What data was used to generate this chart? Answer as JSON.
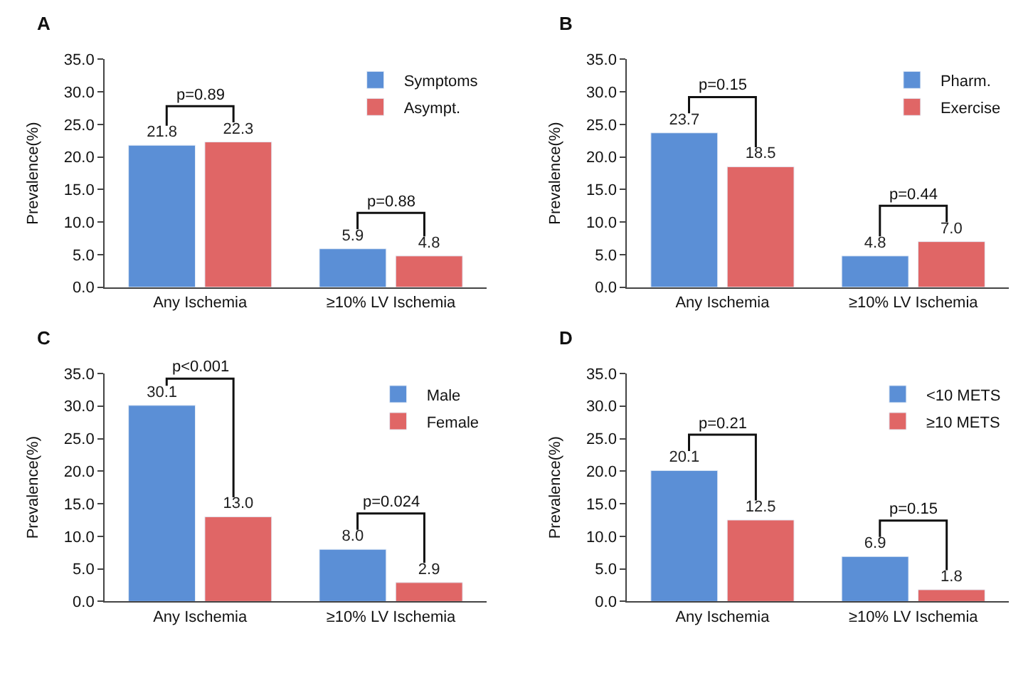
{
  "chart_data": [
    {
      "type": "bar",
      "title": "A",
      "ylabel": "Prevalence(%)",
      "categories": [
        "Any Ischemia",
        "≥10% LV Ischemia"
      ],
      "series": [
        {
          "name": "Symptoms",
          "color": "#5b8fd6",
          "values": [
            21.8,
            5.9
          ],
          "value_labels": [
            "21.8",
            "5.9"
          ]
        },
        {
          "name": "Asympt.",
          "color": "#e06666",
          "values": [
            22.3,
            4.8
          ],
          "value_labels": [
            "22.3",
            "4.8"
          ]
        }
      ],
      "ylim": [
        0,
        35
      ],
      "yticks": [
        {
          "value": 0,
          "label": "0.0"
        },
        {
          "value": 5,
          "label": "5.0"
        },
        {
          "value": 10,
          "label": "10.0"
        },
        {
          "value": 15,
          "label": "15.0"
        },
        {
          "value": 20,
          "label": "20.0"
        },
        {
          "value": 25,
          "label": "25.0"
        },
        {
          "value": 30,
          "label": "30.0"
        },
        {
          "value": 35,
          "label": "35.0"
        }
      ],
      "legend": "top right",
      "annotations": [
        "p=0.89",
        "p=0.88"
      ]
    },
    {
      "type": "bar",
      "title": "B",
      "ylabel": "Prevalence(%)",
      "categories": [
        "Any Ischemia",
        "≥10% LV Ischemia"
      ],
      "series": [
        {
          "name": "Pharm.",
          "color": "#5b8fd6",
          "values": [
            23.7,
            4.8
          ],
          "value_labels": [
            "23.7",
            "4.8"
          ]
        },
        {
          "name": "Exercise",
          "color": "#e06666",
          "values": [
            18.5,
            7.0
          ],
          "value_labels": [
            "18.5",
            "7.0"
          ]
        }
      ],
      "ylim": [
        0,
        35
      ],
      "yticks": [
        {
          "value": 0,
          "label": "0.0"
        },
        {
          "value": 5,
          "label": "5.0"
        },
        {
          "value": 10,
          "label": "10.0"
        },
        {
          "value": 15,
          "label": "15.0"
        },
        {
          "value": 20,
          "label": "20.0"
        },
        {
          "value": 25,
          "label": "25.0"
        },
        {
          "value": 30,
          "label": "30.0"
        },
        {
          "value": 35,
          "label": "35.0"
        }
      ],
      "legend": "top right",
      "annotations": [
        "p=0.15",
        "p=0.44"
      ]
    },
    {
      "type": "bar",
      "title": "C",
      "ylabel": "Prevalence(%)",
      "categories": [
        "Any Ischemia",
        "≥10% LV Ischemia"
      ],
      "series": [
        {
          "name": "Male",
          "color": "#5b8fd6",
          "values": [
            30.1,
            8.0
          ],
          "value_labels": [
            "30.1",
            "8.0"
          ]
        },
        {
          "name": "Female",
          "color": "#e06666",
          "values": [
            13.0,
            2.9
          ],
          "value_labels": [
            "13.0",
            "2.9"
          ]
        }
      ],
      "ylim": [
        0,
        35
      ],
      "yticks": [
        {
          "value": 0,
          "label": "0.0"
        },
        {
          "value": 5,
          "label": "5.0"
        },
        {
          "value": 10,
          "label": "10.0"
        },
        {
          "value": 15,
          "label": "15.0"
        },
        {
          "value": 20,
          "label": "20.0"
        },
        {
          "value": 25,
          "label": "25.0"
        },
        {
          "value": 30,
          "label": "30.0"
        },
        {
          "value": 35,
          "label": "35.0"
        }
      ],
      "legend": "top right",
      "annotations": [
        "p<0.001",
        "p=0.024"
      ]
    },
    {
      "type": "bar",
      "title": "D",
      "ylabel": "Prevalence(%)",
      "categories": [
        "Any Ischemia",
        "≥10% LV Ischemia"
      ],
      "series": [
        {
          "name": "<10 METS",
          "color": "#5b8fd6",
          "values": [
            20.1,
            6.9
          ],
          "value_labels": [
            "20.1",
            "6.9"
          ]
        },
        {
          "name": "≥10 METS",
          "color": "#e06666",
          "values": [
            12.5,
            1.8
          ],
          "value_labels": [
            "12.5",
            "1.8"
          ]
        }
      ],
      "ylim": [
        0,
        35
      ],
      "yticks": [
        {
          "value": 0,
          "label": "0.0"
        },
        {
          "value": 5,
          "label": "5.0"
        },
        {
          "value": 10,
          "label": "10.0"
        },
        {
          "value": 15,
          "label": "15.0"
        },
        {
          "value": 20,
          "label": "20.0"
        },
        {
          "value": 25,
          "label": "25.0"
        },
        {
          "value": 30,
          "label": "30.0"
        },
        {
          "value": 35,
          "label": "35.0"
        }
      ],
      "legend": "top right",
      "annotations": [
        "p=0.21",
        "p=0.15"
      ]
    }
  ]
}
